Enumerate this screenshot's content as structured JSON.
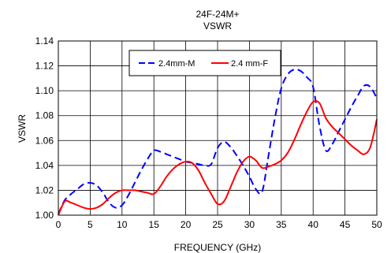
{
  "chart_data": {
    "type": "line",
    "title": "24F-24M+",
    "subtitle": "VSWR",
    "xlabel": "FREQUENCY (GHz)",
    "ylabel": "VSWR",
    "xlim": [
      0,
      50
    ],
    "ylim": [
      1.0,
      1.14
    ],
    "x_ticks": [
      "0",
      "5",
      "10",
      "15",
      "20",
      "25",
      "30",
      "35",
      "40",
      "45",
      "50"
    ],
    "y_ticks": [
      "1.00",
      "1.02",
      "1.04",
      "1.06",
      "1.08",
      "1.10",
      "1.12",
      "1.14"
    ],
    "grid": true,
    "legend_position": "top-center",
    "series": [
      {
        "name": "2.4mm-M",
        "style": "dashed",
        "color": "#0000ff",
        "x": [
          0,
          1,
          2,
          3,
          4,
          5,
          6,
          7,
          8,
          9,
          10,
          11,
          12,
          13,
          14,
          15,
          16,
          17,
          18,
          19,
          20,
          21,
          22,
          23,
          24,
          25,
          26,
          27,
          28,
          29,
          30,
          31,
          32,
          33,
          34,
          35,
          36,
          37,
          38,
          39,
          40,
          41,
          42,
          43,
          44,
          45,
          46,
          47,
          48,
          49,
          50
        ],
        "values": [
          1.001,
          1.012,
          1.017,
          1.021,
          1.025,
          1.026,
          1.024,
          1.018,
          1.01,
          1.006,
          1.008,
          1.016,
          1.026,
          1.036,
          1.045,
          1.052,
          1.051,
          1.049,
          1.047,
          1.045,
          1.043,
          1.042,
          1.041,
          1.04,
          1.041,
          1.054,
          1.059,
          1.055,
          1.048,
          1.04,
          1.031,
          1.021,
          1.019,
          1.048,
          1.078,
          1.102,
          1.113,
          1.117,
          1.116,
          1.111,
          1.103,
          1.072,
          1.052,
          1.057,
          1.067,
          1.077,
          1.087,
          1.096,
          1.104,
          1.103,
          1.094
        ]
      },
      {
        "name": "2.4 mm-F",
        "style": "solid",
        "color": "#ff0000",
        "x": [
          0,
          1,
          2,
          3,
          4,
          5,
          6,
          7,
          8,
          9,
          10,
          11,
          12,
          13,
          14,
          15,
          16,
          17,
          18,
          19,
          20,
          21,
          22,
          23,
          24,
          25,
          26,
          27,
          28,
          29,
          30,
          31,
          32,
          33,
          34,
          35,
          36,
          37,
          38,
          39,
          40,
          41,
          42,
          43,
          44,
          45,
          46,
          47,
          48,
          49,
          50
        ],
        "values": [
          1.0,
          1.011,
          1.01,
          1.008,
          1.006,
          1.005,
          1.006,
          1.009,
          1.014,
          1.018,
          1.02,
          1.02,
          1.02,
          1.019,
          1.018,
          1.017,
          1.023,
          1.031,
          1.037,
          1.041,
          1.043,
          1.042,
          1.036,
          1.026,
          1.017,
          1.009,
          1.011,
          1.022,
          1.034,
          1.043,
          1.047,
          1.044,
          1.038,
          1.039,
          1.041,
          1.044,
          1.05,
          1.06,
          1.072,
          1.083,
          1.091,
          1.09,
          1.078,
          1.071,
          1.066,
          1.061,
          1.056,
          1.052,
          1.049,
          1.055,
          1.077
        ]
      }
    ]
  }
}
